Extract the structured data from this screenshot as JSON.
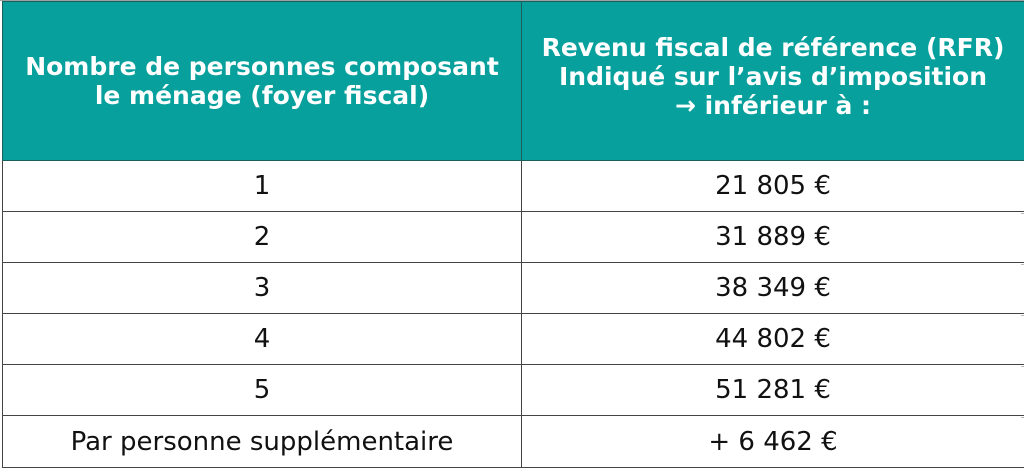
{
  "table": {
    "headers": [
      [
        "Nombre de personnes composant",
        "le ménage (foyer fiscal)"
      ],
      [
        "Revenu fiscal de référence (RFR)",
        "Indiqué sur l’avis d’imposition",
        "→ inférieur à :"
      ]
    ],
    "rows": [
      {
        "persons": "1",
        "rfr": "21 805 €"
      },
      {
        "persons": "2",
        "rfr": "31 889 €"
      },
      {
        "persons": "3",
        "rfr": "38 349 €"
      },
      {
        "persons": "4",
        "rfr": "44 802 €"
      },
      {
        "persons": "5",
        "rfr": "51 281 €"
      },
      {
        "persons": "Par personne supplémentaire",
        "rfr": "+ 6 462 €"
      }
    ]
  },
  "colors": {
    "header_bg": "#07a09c",
    "header_text": "#ffffff",
    "body_text": "#111111",
    "border": "#444444"
  }
}
